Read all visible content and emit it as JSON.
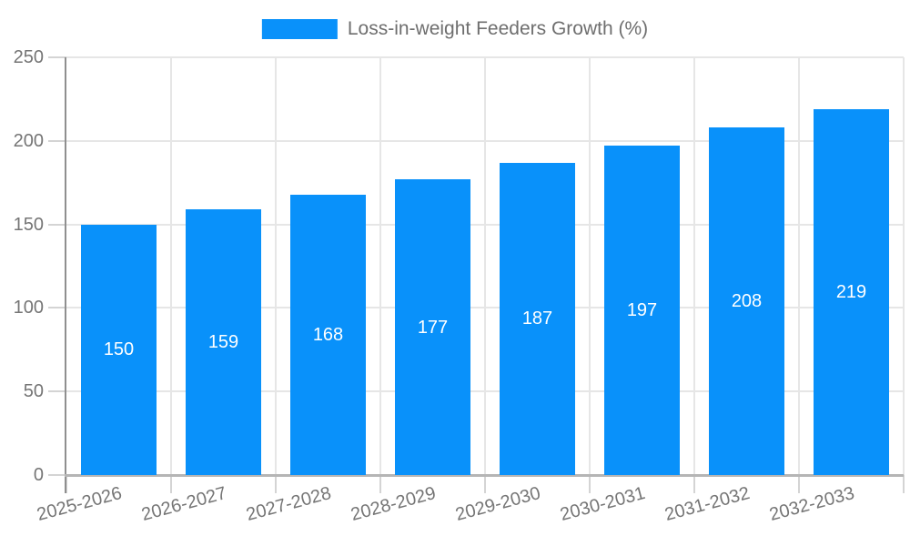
{
  "legend": {
    "label": "Loss-in-weight Feeders Growth (%)"
  },
  "chart_data": {
    "type": "bar",
    "title": "",
    "categories": [
      "2025-2026",
      "2026-2027",
      "2027-2028",
      "2028-2029",
      "2029-2030",
      "2030-2031",
      "2031-2032",
      "2032-2033"
    ],
    "series": [
      {
        "name": "Loss-in-weight Feeders Growth (%)",
        "values": [
          150,
          159,
          168,
          177,
          187,
          197,
          208,
          219
        ]
      }
    ],
    "xlabel": "",
    "ylabel": "",
    "ylim": [
      0,
      250
    ],
    "yticks": [
      0,
      50,
      100,
      150,
      200,
      250
    ],
    "grid": true,
    "legend_position": "top-center",
    "value_labels": "inside-center"
  },
  "colors": {
    "background": "#ffffff",
    "bar": "#0991fa",
    "grid": "#e6e6e6",
    "tick": "#d4d4d4",
    "axis_y": "#8f8f8f",
    "axis_x": "#b5b5b5",
    "tick_label": "#757575",
    "value_label": "#ffffff",
    "legend_text": "#6e6e6e"
  }
}
